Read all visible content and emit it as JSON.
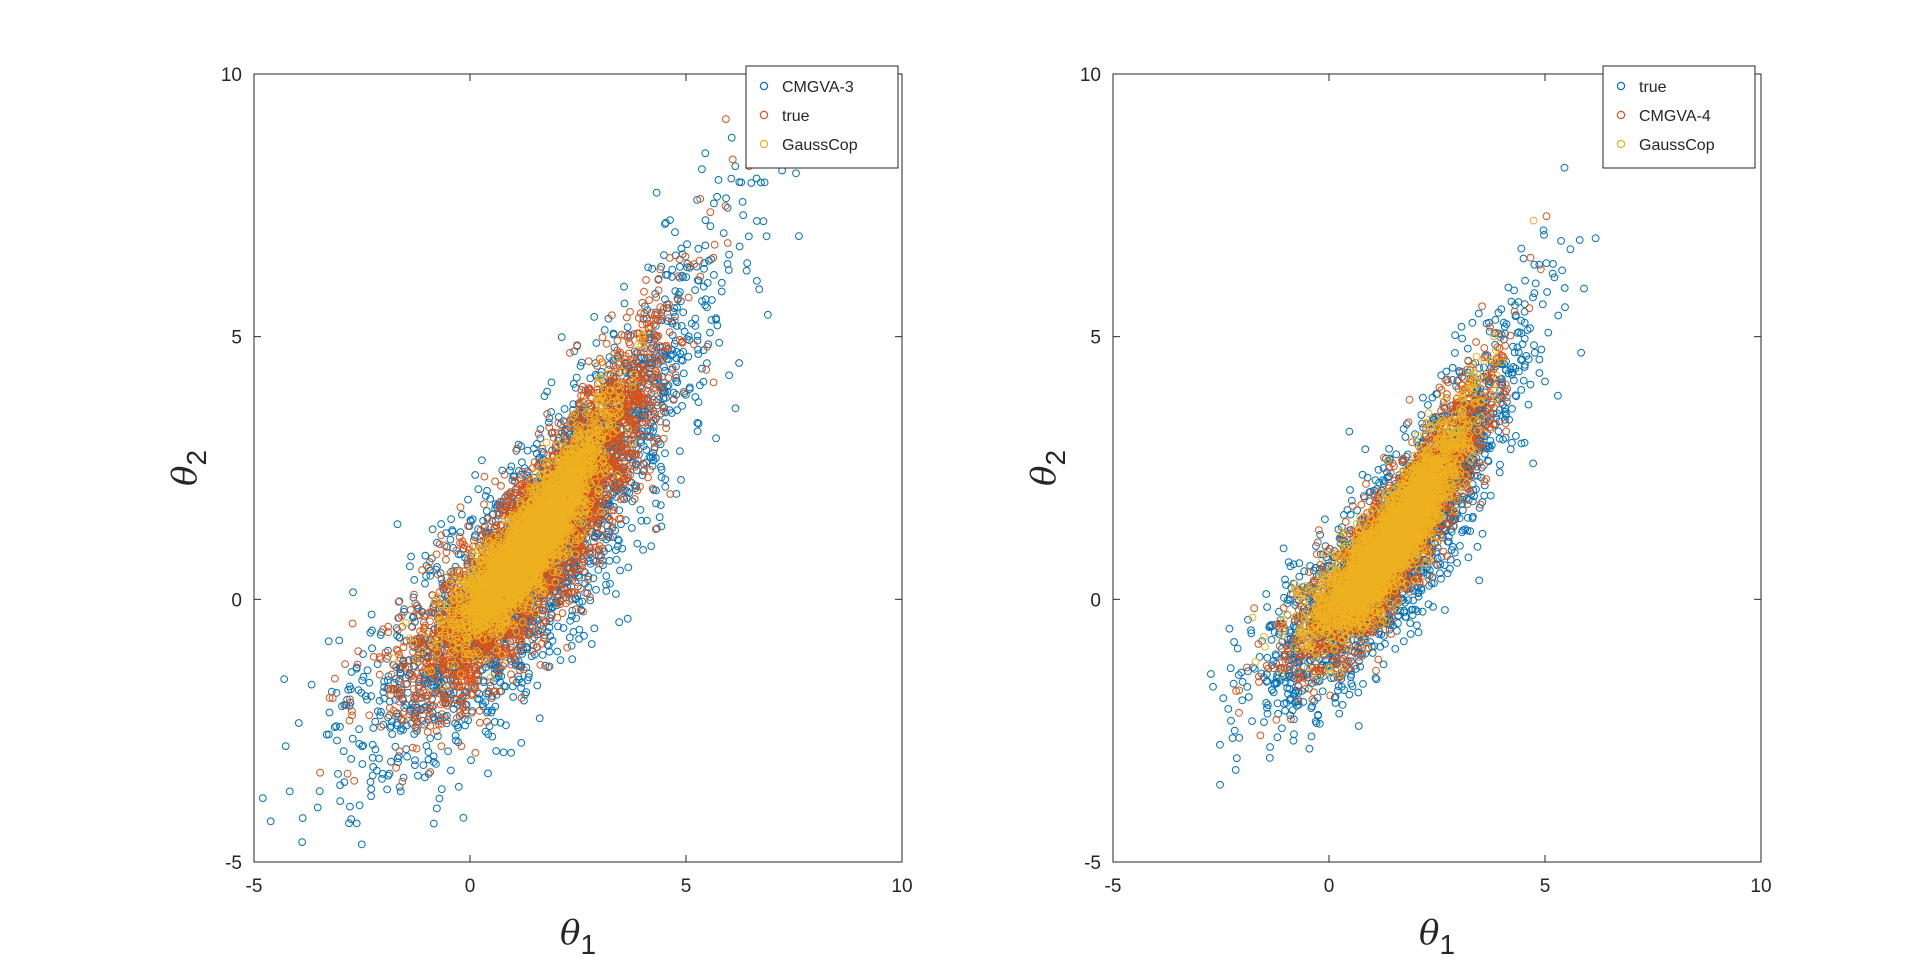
{
  "chart_data": [
    {
      "type": "scatter",
      "xlabel": "θ1",
      "ylabel": "θ2",
      "xlim": [
        -5,
        10
      ],
      "ylim": [
        -5,
        10
      ],
      "xticks": [
        "-5",
        "0",
        "5",
        "10"
      ],
      "yticks": [
        "-5",
        "0",
        "5",
        "10"
      ],
      "grid": false,
      "legend_position": "top-right",
      "series": [
        {
          "name": "CMGVA-3",
          "color": "#0072BD",
          "marker": "circle-open",
          "spread": 1.35,
          "count": 2600
        },
        {
          "name": "true",
          "color": "#D95319",
          "marker": "circle-open",
          "spread": 1.0,
          "count": 3200
        },
        {
          "name": "GaussCop",
          "color": "#EDB120",
          "marker": "circle-open",
          "spread": 0.55,
          "count": 3200
        }
      ]
    },
    {
      "type": "scatter",
      "xlabel": "θ1",
      "ylabel": "θ2",
      "xlim": [
        -5,
        10
      ],
      "ylim": [
        -5,
        10
      ],
      "xticks": [
        "-5",
        "0",
        "5",
        "10"
      ],
      "yticks": [
        "-5",
        "0",
        "5",
        "10"
      ],
      "grid": false,
      "legend_position": "top-right",
      "series": [
        {
          "name": "true",
          "color": "#0072BD",
          "marker": "circle-open",
          "spread": 1.0,
          "count": 2400
        },
        {
          "name": "CMGVA-4",
          "color": "#D95319",
          "marker": "circle-open",
          "spread": 0.75,
          "count": 2200
        },
        {
          "name": "GaussCop",
          "color": "#EDB120",
          "marker": "circle-open",
          "spread": 0.55,
          "count": 3000
        }
      ]
    }
  ]
}
